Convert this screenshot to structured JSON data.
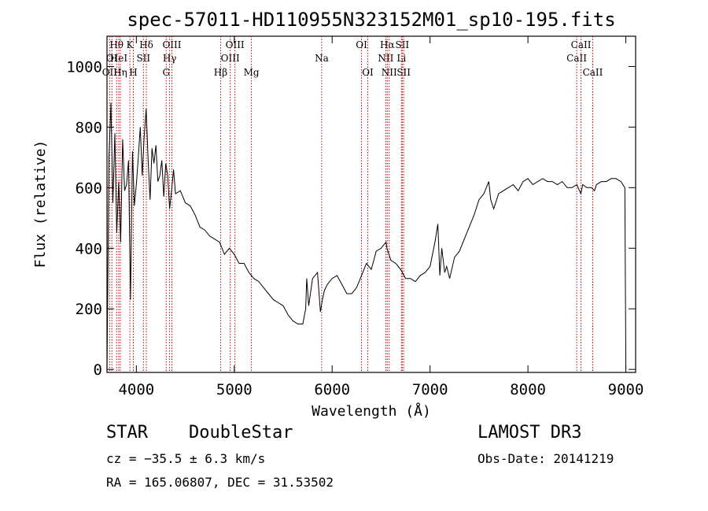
{
  "chart_data": {
    "type": "line",
    "title": "spec-57011-HD110955N323152M01_sp10-195.fits",
    "xlabel": "Wavelength (Å)",
    "ylabel": "Flux (relative)",
    "xlim": [
      3700,
      9100
    ],
    "ylim": [
      -10,
      1100
    ],
    "x_ticks": [
      4000,
      5000,
      6000,
      7000,
      8000,
      9000
    ],
    "y_ticks": [
      0,
      200,
      400,
      600,
      800,
      1000
    ],
    "grid": false,
    "series": [
      {
        "name": "flux",
        "x": [
          3700,
          3720,
          3740,
          3760,
          3780,
          3800,
          3820,
          3840,
          3860,
          3880,
          3900,
          3920,
          3940,
          3960,
          3980,
          4000,
          4020,
          4040,
          4060,
          4080,
          4100,
          4120,
          4140,
          4160,
          4180,
          4200,
          4220,
          4240,
          4260,
          4280,
          4300,
          4320,
          4340,
          4360,
          4380,
          4400,
          4450,
          4500,
          4550,
          4600,
          4650,
          4700,
          4750,
          4800,
          4850,
          4900,
          4950,
          5000,
          5050,
          5100,
          5150,
          5200,
          5250,
          5300,
          5350,
          5400,
          5450,
          5500,
          5550,
          5600,
          5650,
          5700,
          5730,
          5740,
          5760,
          5800,
          5850,
          5880,
          5900,
          5920,
          5950,
          6000,
          6050,
          6100,
          6150,
          6200,
          6250,
          6300,
          6350,
          6400,
          6450,
          6500,
          6550,
          6560,
          6600,
          6650,
          6700,
          6750,
          6800,
          6850,
          6900,
          6950,
          7000,
          7050,
          7080,
          7100,
          7120,
          7150,
          7170,
          7200,
          7250,
          7300,
          7350,
          7400,
          7450,
          7500,
          7550,
          7600,
          7620,
          7650,
          7700,
          7750,
          7800,
          7850,
          7900,
          7950,
          8000,
          8050,
          8100,
          8150,
          8200,
          8250,
          8300,
          8350,
          8400,
          8450,
          8500,
          8540,
          8560,
          8600,
          8650,
          8680,
          8700,
          8750,
          8800,
          8850,
          8900,
          8950,
          8990,
          9000
        ],
        "y": [
          0,
          700,
          880,
          550,
          780,
          450,
          620,
          420,
          760,
          590,
          610,
          690,
          230,
          720,
          540,
          610,
          700,
          800,
          640,
          770,
          860,
          690,
          560,
          730,
          680,
          740,
          620,
          640,
          690,
          570,
          680,
          640,
          530,
          590,
          660,
          580,
          590,
          550,
          540,
          510,
          470,
          460,
          440,
          430,
          420,
          380,
          400,
          380,
          350,
          350,
          320,
          300,
          290,
          270,
          250,
          230,
          220,
          210,
          180,
          160,
          150,
          150,
          200,
          300,
          210,
          300,
          320,
          190,
          230,
          260,
          280,
          300,
          310,
          280,
          250,
          250,
          270,
          310,
          350,
          330,
          390,
          400,
          420,
          400,
          360,
          350,
          330,
          300,
          300,
          290,
          310,
          320,
          340,
          420,
          480,
          310,
          400,
          320,
          340,
          300,
          370,
          390,
          430,
          470,
          510,
          560,
          580,
          620,
          560,
          530,
          580,
          590,
          600,
          610,
          590,
          620,
          630,
          610,
          620,
          630,
          620,
          620,
          610,
          620,
          600,
          600,
          610,
          580,
          610,
          600,
          600,
          590,
          610,
          620,
          620,
          630,
          630,
          620,
          600,
          0
        ]
      }
    ],
    "lines": [
      {
        "name": "OII",
        "x": 3727,
        "row": 3
      },
      {
        "name": "OI",
        "x": 3750,
        "row": 2
      },
      {
        "name": "Hθ",
        "x": 3798,
        "row": 1
      },
      {
        "name": "HeI",
        "x": 3820,
        "row": 2
      },
      {
        "name": "Hη",
        "x": 3836,
        "row": 3
      },
      {
        "name": "K",
        "x": 3934,
        "row": 1
      },
      {
        "name": "H",
        "x": 3969,
        "row": 3
      },
      {
        "name": "SII",
        "x": 4072,
        "row": 2
      },
      {
        "name": "Hδ",
        "x": 4102,
        "row": 1
      },
      {
        "name": "G",
        "x": 4305,
        "row": 3
      },
      {
        "name": "Hγ",
        "x": 4340,
        "row": 2
      },
      {
        "name": "OIII",
        "x": 4363,
        "row": 1
      },
      {
        "name": "Hβ",
        "x": 4861,
        "row": 3
      },
      {
        "name": "OIII",
        "x": 4959,
        "row": 2
      },
      {
        "name": "OIII",
        "x": 5007,
        "row": 1
      },
      {
        "name": "Mg",
        "x": 5175,
        "row": 3
      },
      {
        "name": "Na",
        "x": 5893,
        "row": 2
      },
      {
        "name": "OI",
        "x": 6300,
        "row": 1
      },
      {
        "name": "OI",
        "x": 6364,
        "row": 3
      },
      {
        "name": "NII",
        "x": 6548,
        "row": 2
      },
      {
        "name": "Hα",
        "x": 6563,
        "row": 1
      },
      {
        "name": "NII",
        "x": 6583,
        "row": 3
      },
      {
        "name": "SII",
        "x": 6716,
        "row": 1
      },
      {
        "name": "Li",
        "x": 6708,
        "row": 2
      },
      {
        "name": "SII",
        "x": 6731,
        "row": 3
      },
      {
        "name": "CaII",
        "x": 8498,
        "row": 2
      },
      {
        "name": "CaII",
        "x": 8542,
        "row": 1
      },
      {
        "name": "CaII",
        "x": 8662,
        "row": 3
      }
    ]
  },
  "info": {
    "object_class": "STAR",
    "subclass": "DoubleStar",
    "survey": "LAMOST DR3",
    "redshift": "cz = −35.5 ± 6.3 km/s",
    "obs_date": "Obs-Date: 20141219",
    "coords": "RA = 165.06807, DEC =  31.53502"
  }
}
